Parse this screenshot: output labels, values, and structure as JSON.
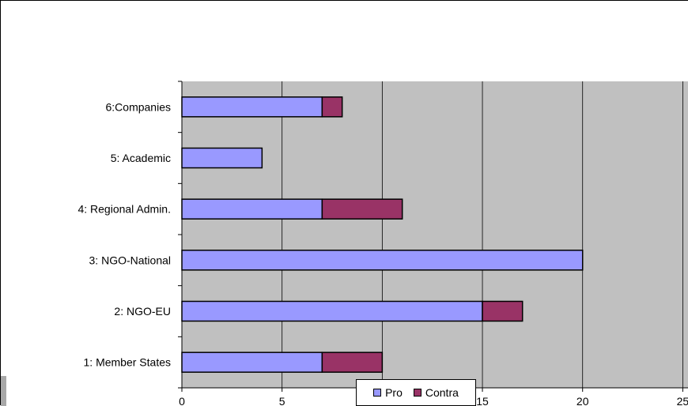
{
  "chart_data": {
    "type": "bar",
    "orientation": "horizontal",
    "stacked": true,
    "categories": [
      "1: Member States",
      "2: NGO-EU",
      "3: NGO-National",
      "4: Regional Admin.",
      "5: Academic",
      "6:Companies"
    ],
    "series": [
      {
        "name": "Pro",
        "values": [
          7,
          15,
          20,
          7,
          4,
          7
        ],
        "color": "#9999ff"
      },
      {
        "name": "Contra",
        "values": [
          3,
          2,
          0,
          4,
          0,
          1
        ],
        "color": "#993366"
      }
    ],
    "xlim": [
      0,
      25
    ],
    "xticks": [
      0,
      5,
      10,
      15,
      20,
      25
    ],
    "xtick_labels": [
      "0",
      "5",
      "",
      "15",
      "20",
      "25"
    ],
    "grid": true,
    "legend": "bottom",
    "plot_background": "#c0c0c0",
    "title": "",
    "xlabel": "",
    "ylabel": ""
  }
}
